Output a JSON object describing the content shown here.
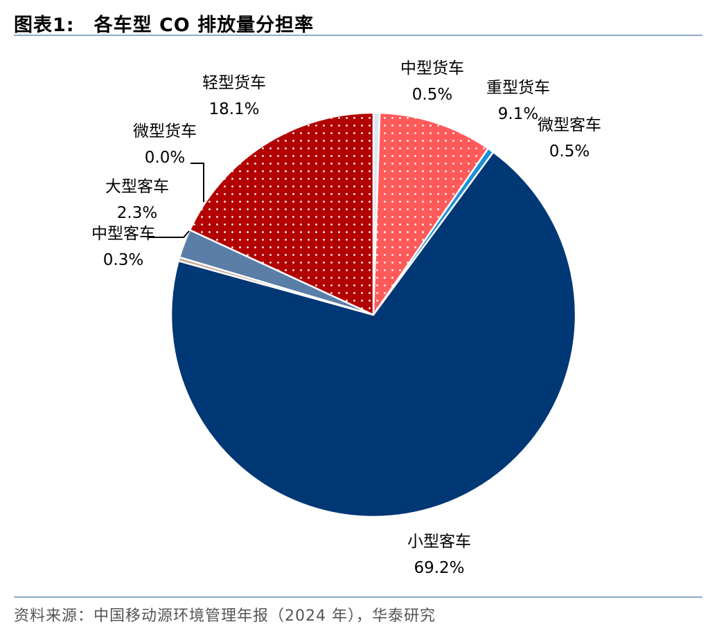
{
  "header": {
    "figure_number": "图表1:",
    "title": "各车型 CO 排放量分担率"
  },
  "source": "资料来源：中国移动源环境管理年报（2024 年），华泰研究",
  "chart_data": {
    "type": "pie",
    "slices": [
      {
        "label": "中型货车",
        "value": 0.5,
        "value_label": "0.5%",
        "color": "#d9e8f5",
        "pattern": "none"
      },
      {
        "label": "重型货车",
        "value": 9.1,
        "value_label": "9.1%",
        "color": "#ff5a5a",
        "pattern": "dots"
      },
      {
        "label": "微型客车",
        "value": 0.5,
        "value_label": "0.5%",
        "color": "#1c8fd6",
        "pattern": "none"
      },
      {
        "label": "小型客车",
        "value": 69.2,
        "value_label": "69.2%",
        "color": "#003775",
        "pattern": "none"
      },
      {
        "label": "中型客车",
        "value": 0.3,
        "value_label": "0.3%",
        "color": "#c8a898",
        "pattern": "none"
      },
      {
        "label": "大型客车",
        "value": 2.3,
        "value_label": "2.3%",
        "color": "#5b7ea8",
        "pattern": "none"
      },
      {
        "label": "微型货车",
        "value": 0.0,
        "value_label": "0.0%",
        "color": "#b0b0b0",
        "pattern": "none"
      },
      {
        "label": "轻型货车",
        "value": 18.1,
        "value_label": "18.1%",
        "color": "#b30000",
        "pattern": "dots"
      }
    ]
  }
}
